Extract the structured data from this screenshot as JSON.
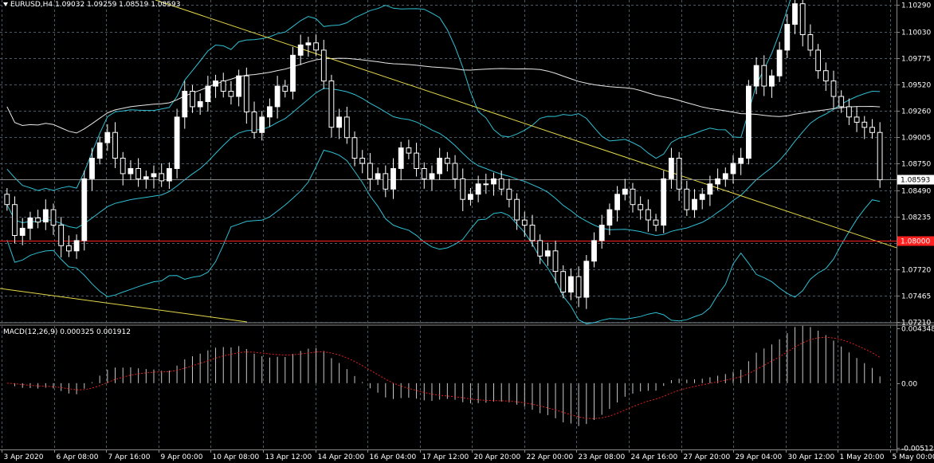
{
  "header": {
    "symbol": "EURUSD,H4",
    "ohlc": "1.09032 1.09259 1.08519 1.08593"
  },
  "macd_header": {
    "label": "MACD(12,26,9) 0.000325 0.001912"
  },
  "colors": {
    "background": "#000000",
    "grid": "#4a5a66",
    "bull_candle": "#ffffff",
    "bear_candle": "#000000",
    "bollinger": "#2fbfd3",
    "moving_average": "#e8e8e8",
    "trendline": "#e6d84a",
    "horizontal_level": "#ff2020",
    "macd_histogram": "#c8c8c8",
    "macd_signal": "#e02020"
  },
  "chart_data": [
    {
      "type": "candlestick",
      "title": "EURUSD,H4",
      "ylim": [
        1.0721,
        1.1029
      ],
      "price_ticks": [
        "1.10290",
        "1.10030",
        "1.09775",
        "1.09520",
        "1.09260",
        "1.09005",
        "1.08750",
        "1.08490",
        "1.08235",
        "1.07975",
        "1.07720",
        "1.07465",
        "1.07210"
      ],
      "time_ticks": [
        "3 Apr 2020",
        "6 Apr 08:00",
        "7 Apr 16:00",
        "9 Apr 00:00",
        "10 Apr 08:00",
        "13 Apr 12:00",
        "14 Apr 20:00",
        "16 Apr 04:00",
        "17 Apr 12:00",
        "20 Apr 20:00",
        "22 Apr 00:00",
        "23 Apr 08:00",
        "24 Apr 16:00",
        "27 Apr 20:00",
        "29 Apr 04:00",
        "30 Apr 12:00",
        "1 May 20:00",
        "5 May 00:00"
      ],
      "current_price": "1.08593",
      "level_price": "1.08000",
      "candles_close": [
        1.0835,
        1.0805,
        1.0812,
        1.0822,
        1.0818,
        1.083,
        1.0815,
        1.0795,
        1.079,
        1.08,
        1.086,
        1.088,
        1.0895,
        1.0905,
        1.088,
        1.0865,
        1.087,
        1.086,
        1.0862,
        1.0865,
        1.0858,
        1.087,
        1.092,
        1.0945,
        1.093,
        1.0935,
        1.095,
        1.0955,
        1.0945,
        1.094,
        1.096,
        1.0925,
        1.0905,
        1.092,
        1.093,
        1.095,
        1.0945,
        1.098,
        1.099,
        1.0992,
        1.0985,
        1.0955,
        1.091,
        1.092,
        1.09,
        1.088,
        1.0875,
        1.086,
        1.0865,
        1.085,
        1.087,
        1.089,
        1.0885,
        1.087,
        1.086,
        1.0865,
        1.088,
        1.0875,
        1.086,
        1.084,
        1.0845,
        1.0855,
        1.0855,
        1.086,
        1.085,
        1.084,
        1.082,
        1.0815,
        1.08,
        1.0785,
        1.079,
        1.077,
        1.075,
        1.0765,
        1.0745,
        1.078,
        1.08,
        1.0815,
        1.083,
        1.0845,
        1.085,
        1.0835,
        1.083,
        1.082,
        1.0815,
        1.086,
        1.088,
        1.085,
        1.083,
        1.084,
        1.0845,
        1.0855,
        1.086,
        1.0865,
        1.0875,
        1.088,
        1.095,
        1.097,
        1.095,
        1.096,
        1.0985,
        1.101,
        1.103,
        1.1,
        1.0985,
        1.0965,
        1.0955,
        1.094,
        1.093,
        1.092,
        1.0915,
        1.091,
        1.0905,
        1.0859
      ],
      "indicators": [
        "Bollinger Bands",
        "Moving Average",
        "Trendlines"
      ]
    },
    {
      "type": "bar",
      "title": "MACD(12,26,9) 0.000325 0.001912",
      "ylim": [
        -0.00512,
        0.00434
      ],
      "value_ticks": [
        "0.004348",
        "0.00",
        "-0.005122"
      ],
      "macd": 0.000325,
      "signal": 0.001912
    }
  ]
}
